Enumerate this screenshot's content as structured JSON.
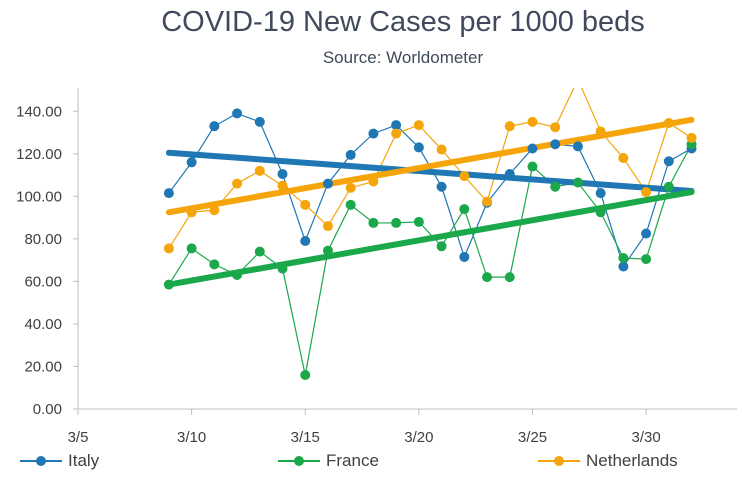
{
  "chart_data": {
    "type": "scatter",
    "title": "COVID-19 New Cases per 1000 beds",
    "subtitle": "Source: Worldometer",
    "xlabel": "",
    "ylabel": "",
    "x_tick_labels": [
      "3/5",
      "3/10",
      "3/15",
      "3/20",
      "3/25",
      "3/30"
    ],
    "x_tick_dates": [
      "2020-03-05",
      "2020-03-10",
      "2020-03-15",
      "2020-03-20",
      "2020-03-25",
      "2020-03-30"
    ],
    "xlim": [
      "2020-03-05",
      "2020-04-03"
    ],
    "ylim": [
      0,
      150
    ],
    "y_ticks": [
      0,
      20,
      40,
      60,
      80,
      100,
      120,
      140
    ],
    "y_tick_labels": [
      "0.00",
      "20.00",
      "40.00",
      "60.00",
      "80.00",
      "100.00",
      "120.00",
      "140.00"
    ],
    "x": [
      "2020-03-09",
      "2020-03-10",
      "2020-03-11",
      "2020-03-12",
      "2020-03-13",
      "2020-03-14",
      "2020-03-15",
      "2020-03-16",
      "2020-03-17",
      "2020-03-18",
      "2020-03-19",
      "2020-03-20",
      "2020-03-21",
      "2020-03-22",
      "2020-03-23",
      "2020-03-24",
      "2020-03-25",
      "2020-03-26",
      "2020-03-27",
      "2020-03-28",
      "2020-03-29",
      "2020-03-30",
      "2020-03-31",
      "2020-04-01"
    ],
    "series": [
      {
        "name": "Italy",
        "color": "#1f77b4",
        "values": [
          101.5,
          116,
          133,
          139,
          135,
          110.5,
          79,
          106,
          119.5,
          129.5,
          133.5,
          123,
          104.5,
          71.5,
          97,
          110.5,
          122.5,
          124.5,
          123.5,
          101.5,
          67,
          82.5,
          116.5,
          122.5
        ],
        "trendline": {
          "start": 120.5,
          "end": 102.5
        }
      },
      {
        "name": "France",
        "color": "#1aa84a",
        "values": [
          58.5,
          75.5,
          68,
          63,
          74,
          66,
          16,
          74.5,
          96,
          87.5,
          87.5,
          88,
          76.5,
          94,
          62,
          62,
          114,
          104.5,
          106.5,
          92.5,
          71,
          70.5,
          104.5,
          124.5
        ],
        "trendline": {
          "start": 58.5,
          "end": 102
        }
      },
      {
        "name": "Netherlands",
        "color": "#f5a50a",
        "values": [
          75.5,
          92.5,
          93.5,
          106,
          112,
          105,
          96,
          86,
          104,
          107,
          129.5,
          133.5,
          122,
          109.5,
          97.5,
          133,
          135,
          132.5,
          155,
          130.5,
          118,
          102,
          134.5,
          127.5
        ],
        "trendline": {
          "start": 92.5,
          "end": 136
        }
      }
    ],
    "legend_position": "bottom",
    "grid": false
  }
}
